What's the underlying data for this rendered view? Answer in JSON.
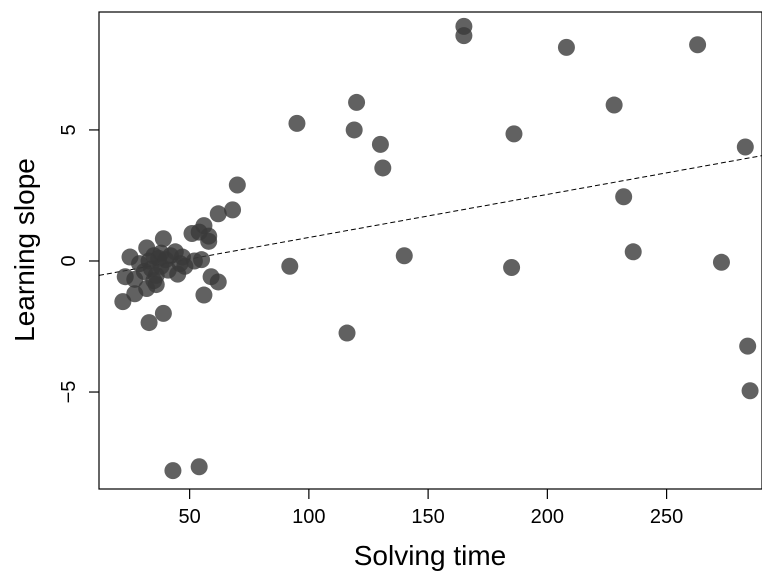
{
  "chart_data": {
    "type": "scatter",
    "title": "",
    "xlabel": "Solving time",
    "ylabel": "Learning slope",
    "xlim": [
      12,
      290
    ],
    "ylim": [
      -8.7,
      9.5
    ],
    "xticks": [
      50,
      100,
      150,
      200,
      250
    ],
    "yticks": [
      -5,
      0,
      5
    ],
    "ytick_labels": [
      "−5",
      "0",
      "5"
    ],
    "grid": false,
    "legend": "none",
    "point_color": "#3a3a3a",
    "trend_line": {
      "style": "dashed",
      "x": [
        12,
        290
      ],
      "y": [
        -0.55,
        4.02
      ]
    },
    "points": [
      {
        "x": 22,
        "y": -1.55
      },
      {
        "x": 23,
        "y": -0.6
      },
      {
        "x": 25,
        "y": 0.15
      },
      {
        "x": 27,
        "y": -1.25
      },
      {
        "x": 27,
        "y": -0.7
      },
      {
        "x": 29,
        "y": -0.1
      },
      {
        "x": 31,
        "y": -0.4
      },
      {
        "x": 32,
        "y": 0.5
      },
      {
        "x": 32,
        "y": -1.05
      },
      {
        "x": 33,
        "y": -2.35
      },
      {
        "x": 33,
        "y": 0.0
      },
      {
        "x": 34,
        "y": -0.3
      },
      {
        "x": 35,
        "y": -0.75
      },
      {
        "x": 35,
        "y": 0.2
      },
      {
        "x": 36,
        "y": -0.55
      },
      {
        "x": 36,
        "y": -0.9
      },
      {
        "x": 37,
        "y": 0.1
      },
      {
        "x": 38,
        "y": -0.2
      },
      {
        "x": 38,
        "y": 0.3
      },
      {
        "x": 39,
        "y": 0.85
      },
      {
        "x": 39,
        "y": -2.0
      },
      {
        "x": 40,
        "y": 0.05
      },
      {
        "x": 41,
        "y": -0.35
      },
      {
        "x": 42,
        "y": 0.2
      },
      {
        "x": 43,
        "y": -8.0
      },
      {
        "x": 44,
        "y": 0.35
      },
      {
        "x": 45,
        "y": -0.5
      },
      {
        "x": 46,
        "y": -0.1
      },
      {
        "x": 47,
        "y": 0.15
      },
      {
        "x": 48,
        "y": -0.2
      },
      {
        "x": 51,
        "y": 1.05
      },
      {
        "x": 52,
        "y": 0.0
      },
      {
        "x": 54,
        "y": 1.1
      },
      {
        "x": 54,
        "y": -7.85
      },
      {
        "x": 55,
        "y": 0.05
      },
      {
        "x": 56,
        "y": 1.35
      },
      {
        "x": 56,
        "y": -1.3
      },
      {
        "x": 58,
        "y": 0.95
      },
      {
        "x": 58,
        "y": 0.75
      },
      {
        "x": 59,
        "y": -0.6
      },
      {
        "x": 62,
        "y": 1.8
      },
      {
        "x": 62,
        "y": -0.8
      },
      {
        "x": 68,
        "y": 1.95
      },
      {
        "x": 70,
        "y": 2.9
      },
      {
        "x": 92,
        "y": -0.2
      },
      {
        "x": 95,
        "y": 5.25
      },
      {
        "x": 116,
        "y": -2.75
      },
      {
        "x": 119,
        "y": 5.0
      },
      {
        "x": 120,
        "y": 6.05
      },
      {
        "x": 130,
        "y": 4.45
      },
      {
        "x": 131,
        "y": 3.55
      },
      {
        "x": 140,
        "y": 0.2
      },
      {
        "x": 165,
        "y": 8.6
      },
      {
        "x": 165,
        "y": 8.95
      },
      {
        "x": 185,
        "y": -0.25
      },
      {
        "x": 186,
        "y": 4.85
      },
      {
        "x": 208,
        "y": 8.15
      },
      {
        "x": 228,
        "y": 5.95
      },
      {
        "x": 232,
        "y": 2.45
      },
      {
        "x": 236,
        "y": 0.35
      },
      {
        "x": 263,
        "y": 8.25
      },
      {
        "x": 273,
        "y": -0.05
      },
      {
        "x": 283,
        "y": 4.35
      },
      {
        "x": 284,
        "y": -3.25
      },
      {
        "x": 285,
        "y": -4.95
      }
    ]
  }
}
